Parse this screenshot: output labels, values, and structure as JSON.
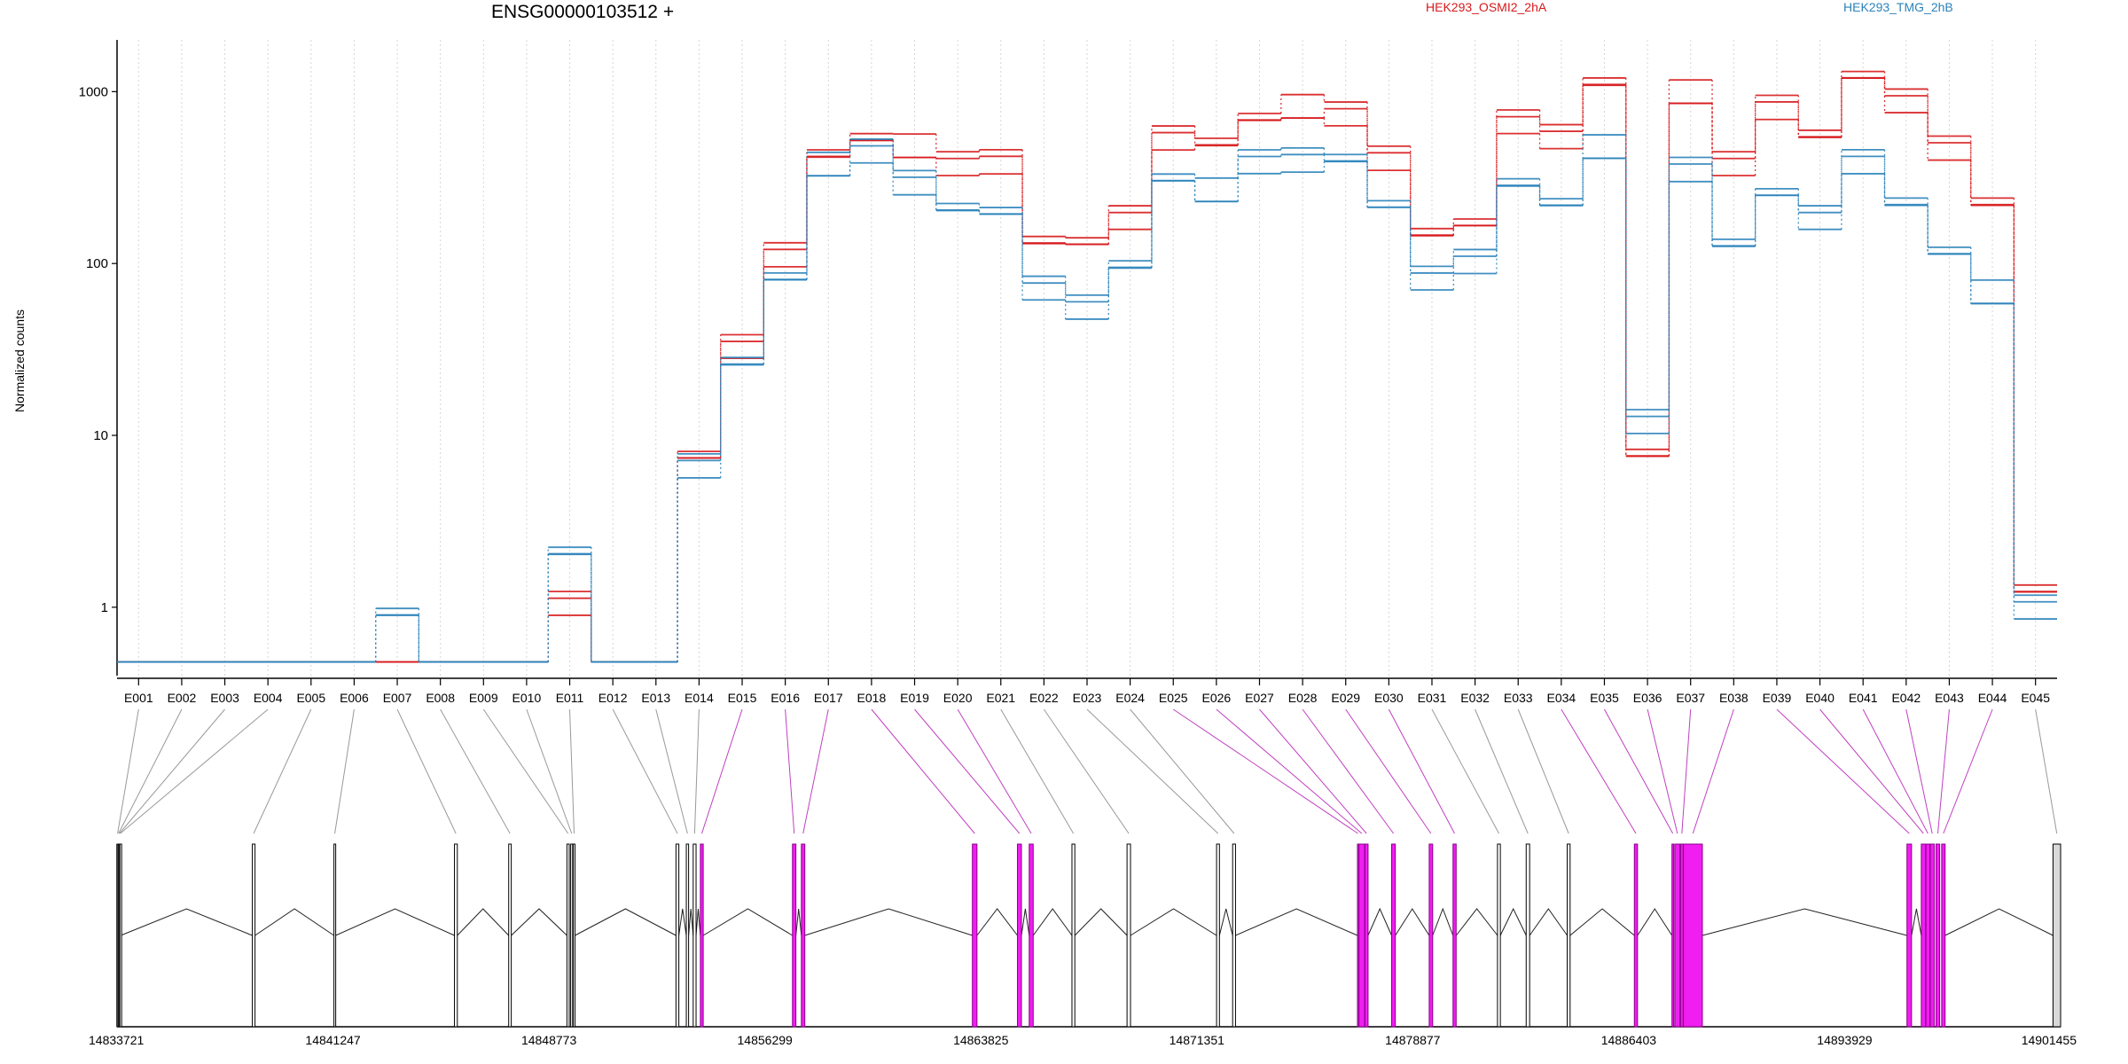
{
  "chart_data": {
    "type": "line",
    "title": "ENSG00000103512 +",
    "ylabel": "Normalized counts",
    "yscale": "log",
    "ylim": [
      0.4,
      2000
    ],
    "yticks": [
      1,
      10,
      100,
      1000
    ],
    "ytick_labels": [
      "1",
      "10",
      "100",
      "1000"
    ],
    "grid": "vertical dotted",
    "legend": [
      "HEK293_OSMI2_2hA",
      "HEK293_TMG_2hB"
    ],
    "legend_placement": "top",
    "colors": {
      "groupA": "#D7191C",
      "groupB": "#2B83BA",
      "exon_highlight": "#F01EF0",
      "exon_plain": "#D9D9D9"
    },
    "categories": [
      "E001",
      "E002",
      "E003",
      "E004",
      "E005",
      "E006",
      "E007",
      "E008",
      "E009",
      "E010",
      "E011",
      "E012",
      "E013",
      "E014",
      "E015",
      "E016",
      "E017",
      "E018",
      "E019",
      "E020",
      "E021",
      "E022",
      "E023",
      "E024",
      "E025",
      "E026",
      "E027",
      "E028",
      "E029",
      "E030",
      "E031",
      "E032",
      "E033",
      "E034",
      "E035",
      "E036",
      "E037",
      "E038",
      "E039",
      "E040",
      "E041",
      "E042",
      "E043",
      "E044",
      "E045"
    ],
    "series": [
      {
        "name": "HEK293_OSMI2_2hA",
        "color": "#D7191C",
        "values": [
          0.48,
          0.48,
          0.48,
          0.48,
          0.48,
          0.48,
          0.48,
          0.48,
          0.48,
          0.48,
          1.05,
          0.48,
          0.48,
          8,
          32,
          115,
          420,
          550,
          460,
          380,
          410,
          135,
          140,
          180,
          550,
          490,
          720,
          780,
          740,
          430,
          150,
          180,
          650,
          560,
          1100,
          8,
          950,
          380,
          850,
          560,
          1300,
          860,
          480,
          220,
          1.3
        ]
      },
      {
        "name": "HEK293_TMG_2hB",
        "color": "#2B83BA",
        "values": [
          0.48,
          0.48,
          0.48,
          0.48,
          0.48,
          0.48,
          0.95,
          0.48,
          0.48,
          0.48,
          2.1,
          0.48,
          0.48,
          6.8,
          26,
          85,
          360,
          450,
          310,
          210,
          210,
          70,
          57,
          95,
          320,
          255,
          390,
          420,
          405,
          230,
          80,
          105,
          285,
          230,
          455,
          12,
          370,
          130,
          270,
          180,
          400,
          220,
          120,
          65,
          1.0
        ]
      }
    ],
    "gene_model": {
      "coordinate_ticks": [
        "14833721",
        "14841247",
        "14848773",
        "14856299",
        "14863825",
        "14871351",
        "14878877",
        "14886403",
        "14893929",
        "14901455"
      ],
      "exon_labels": [
        "E001",
        "E002",
        "E003",
        "E004",
        "E005",
        "E006",
        "E007",
        "E008",
        "E009",
        "E010",
        "E011",
        "E012",
        "E013",
        "E014",
        "E015",
        "E016",
        "E017",
        "E018",
        "E019",
        "E020",
        "E021",
        "E022",
        "E023",
        "E024",
        "E025",
        "E026",
        "E027",
        "E028",
        "E029",
        "E030",
        "E031",
        "E032",
        "E033",
        "E034",
        "E035",
        "E036",
        "E037",
        "E038",
        "E039",
        "E040",
        "E041",
        "E042",
        "E043",
        "E044",
        "E045"
      ],
      "exon_genomic_start": [
        14833721,
        14833760,
        14833790,
        14833820,
        14838435,
        14841280,
        14845480,
        14847370,
        14849400,
        14849530,
        14849620,
        14853200,
        14853560,
        14853800,
        14854050,
        14857260,
        14857570,
        14863530,
        14865100,
        14865510,
        14867000,
        14868920,
        14872040,
        14872600,
        14876950,
        14877000,
        14877210,
        14878140,
        14879450,
        14880280,
        14881830,
        14882830,
        14884260,
        14886600,
        14887910,
        14888010,
        14888210,
        14888310,
        14896100,
        14896600,
        14896760,
        14896910,
        14897110,
        14897310,
        14901190
      ],
      "exon_genomic_end": [
        14833760,
        14833790,
        14833820,
        14833850,
        14838530,
        14841340,
        14845580,
        14847460,
        14849480,
        14849600,
        14849680,
        14853300,
        14853640,
        14853900,
        14854150,
        14857380,
        14857690,
        14863690,
        14865240,
        14865650,
        14867100,
        14869040,
        14872140,
        14872700,
        14876985,
        14877200,
        14877320,
        14878270,
        14879570,
        14880390,
        14881930,
        14882950,
        14884360,
        14886710,
        14887970,
        14888190,
        14888300,
        14888970,
        14896260,
        14896750,
        14896900,
        14897050,
        14897240,
        14897430,
        14901455
      ],
      "exon_highlighted": [
        false,
        false,
        false,
        false,
        false,
        false,
        false,
        false,
        false,
        false,
        false,
        false,
        false,
        false,
        true,
        true,
        true,
        true,
        true,
        true,
        false,
        false,
        false,
        false,
        true,
        true,
        true,
        true,
        true,
        true,
        false,
        false,
        false,
        true,
        true,
        true,
        true,
        true,
        true,
        true,
        true,
        true,
        true,
        true,
        false
      ]
    }
  }
}
